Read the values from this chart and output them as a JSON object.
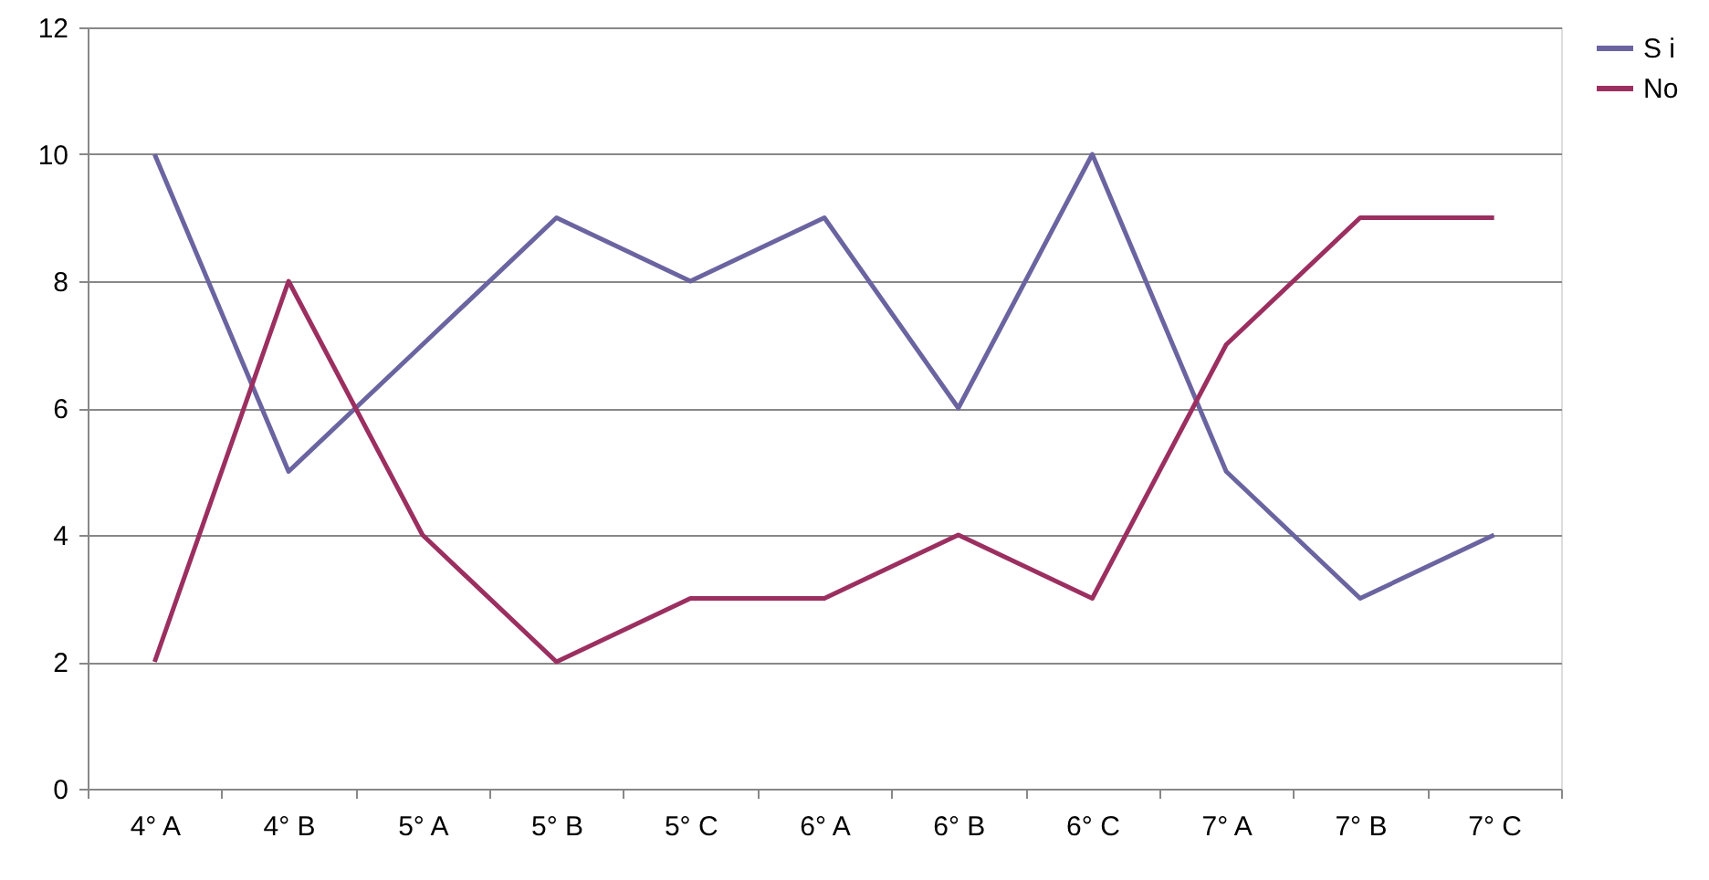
{
  "chart_data": {
    "type": "line",
    "categories": [
      "4° A",
      "4° B",
      "5° A",
      "5° B",
      "5° C",
      "6° A",
      "6° B",
      "6° C",
      "7° A",
      "7° B",
      "7° C"
    ],
    "series": [
      {
        "name": "S i",
        "color": "#6a64a0",
        "values": [
          10,
          5,
          7,
          9,
          8,
          9,
          6,
          10,
          5,
          3,
          4
        ]
      },
      {
        "name": "No",
        "color": "#9b2f60",
        "values": [
          2,
          8,
          4,
          2,
          3,
          3,
          4,
          3,
          7,
          9,
          9
        ]
      }
    ],
    "ylim": [
      0,
      12
    ],
    "yticks": [
      0,
      2,
      4,
      6,
      8,
      10,
      12
    ],
    "grid": "y",
    "legend": "right",
    "marker": "none",
    "line_style": "solid"
  }
}
